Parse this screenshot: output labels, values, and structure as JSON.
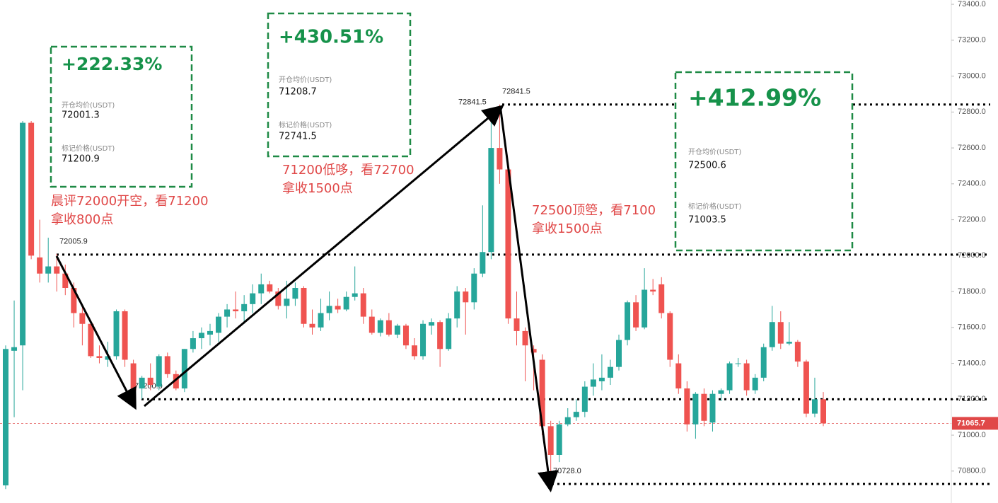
{
  "chart_data": {
    "type": "candlestick",
    "up_color": "#26a69a",
    "down_color": "#ef5350",
    "open": [
      70720,
      71470,
      71500,
      72740,
      71990,
      71900,
      71940,
      71900,
      71820,
      71680,
      71620,
      71440,
      71420,
      71440,
      71690,
      71400,
      71260,
      71320,
      71270,
      71440,
      71340,
      71260,
      71480,
      71540,
      71560,
      71570,
      71660,
      71700,
      71690,
      71730,
      71790,
      71840,
      71800,
      71720,
      71760,
      71820,
      71620,
      71600,
      71680,
      71720,
      71700,
      71770,
      71790,
      71660,
      71570,
      71640,
      71560,
      71610,
      71500,
      71440,
      71610,
      71630,
      71480,
      71650,
      71800,
      71740,
      71900,
      72020,
      72600,
      72480,
      71650,
      71580,
      71480,
      71420,
      71050,
      70890,
      71060,
      71100,
      71130,
      71270,
      71300,
      71320,
      71380,
      71530,
      71740,
      71600,
      71810,
      71840,
      71680,
      71400,
      71260,
      71060,
      71230,
      71070,
      71230,
      71250,
      71400,
      71400,
      71250,
      71320,
      71490,
      71630,
      71510,
      71520,
      71410,
      71120,
      71200
    ],
    "high": [
      71500,
      71750,
      72750,
      72750,
      72200,
      72100,
      72010,
      71950,
      71850,
      71720,
      71640,
      71500,
      71520,
      71700,
      71700,
      71420,
      71330,
      71400,
      71450,
      71460,
      71360,
      71480,
      71580,
      71600,
      71620,
      71680,
      71730,
      71800,
      71780,
      71840,
      71900,
      71860,
      71820,
      71860,
      71850,
      71830,
      71700,
      71760,
      71800,
      71760,
      71800,
      71940,
      71820,
      71700,
      71650,
      71680,
      71620,
      71620,
      71540,
      71640,
      71650,
      71640,
      71680,
      71830,
      71820,
      71930,
      72280,
      72790,
      72841.5,
      72500,
      71800,
      71600,
      71500,
      71450,
      71080,
      71080,
      71150,
      71200,
      71300,
      71400,
      71450,
      71420,
      71560,
      71750,
      71780,
      71930,
      71870,
      71880,
      71690,
      71450,
      71300,
      71240,
      71260,
      71250,
      71260,
      71410,
      71430,
      71420,
      71340,
      71510,
      71720,
      71690,
      71630,
      71530,
      71420,
      71320,
      71240
    ],
    "low": [
      70700,
      71100,
      71250,
      71980,
      71850,
      71850,
      71800,
      71780,
      71600,
      71500,
      71430,
      71400,
      71380,
      71420,
      71380,
      71220,
      71200,
      71250,
      71250,
      71320,
      71250,
      71240,
      71460,
      71480,
      71500,
      71520,
      71600,
      71650,
      71620,
      71680,
      71730,
      71790,
      71700,
      71650,
      71720,
      71600,
      71560,
      71580,
      71640,
      71680,
      71690,
      71750,
      71620,
      71560,
      71550,
      71550,
      71540,
      71480,
      71420,
      71420,
      71560,
      71380,
      71470,
      71600,
      71560,
      71700,
      71880,
      71980,
      72400,
      71620,
      71500,
      71300,
      71250,
      71000,
      70728,
      70850,
      71050,
      71080,
      71100,
      71220,
      71250,
      71280,
      71360,
      71500,
      71580,
      71590,
      71780,
      71650,
      71380,
      71230,
      71020,
      70980,
      71050,
      71020,
      71190,
      71230,
      71380,
      71220,
      71230,
      71300,
      71470,
      71480,
      71500,
      71380,
      71100,
      71100,
      71050
    ],
    "close": [
      71480,
      71490,
      72740,
      72000,
      71900,
      71940,
      71900,
      71820,
      71680,
      71620,
      71440,
      71430,
      71440,
      71690,
      71420,
      71250,
      71320,
      71280,
      71440,
      71340,
      71260,
      71480,
      71540,
      71570,
      71580,
      71660,
      71700,
      71690,
      71730,
      71790,
      71840,
      71800,
      71720,
      71760,
      71820,
      71620,
      71600,
      71680,
      71720,
      71700,
      71770,
      71790,
      71660,
      71570,
      71640,
      71560,
      71610,
      71500,
      71440,
      71620,
      71630,
      71480,
      71650,
      71800,
      71740,
      71900,
      72020,
      72600,
      72480,
      71650,
      71580,
      71500,
      71460,
      71050,
      70890,
      71060,
      71100,
      71130,
      71270,
      71310,
      71320,
      71380,
      71530,
      71740,
      71600,
      71810,
      71800,
      71680,
      71420,
      71260,
      71060,
      71230,
      71080,
      71230,
      71250,
      71400,
      71400,
      71250,
      71320,
      71490,
      71630,
      71510,
      71520,
      71410,
      71120,
      71200,
      71065.7
    ],
    "ylim": [
      70622,
      73424
    ],
    "yticks": [
      {
        "value": 73400,
        "label": "73400.0"
      },
      {
        "value": 73200,
        "label": "73200.0"
      },
      {
        "value": 73000,
        "label": "73000.0"
      },
      {
        "value": 72800,
        "label": "72800.0"
      },
      {
        "value": 72600,
        "label": "72600.0"
      },
      {
        "value": 72400,
        "label": "72400.0"
      },
      {
        "value": 72200,
        "label": "72200.0"
      },
      {
        "value": 72000,
        "label": "72000.0"
      },
      {
        "value": 71800,
        "label": "71800.0"
      },
      {
        "value": 71600,
        "label": "71600.0"
      },
      {
        "value": 71400,
        "label": "71400.0"
      },
      {
        "value": 71200,
        "label": "71200.0"
      },
      {
        "value": 71000,
        "label": "71000.0"
      },
      {
        "value": 70800,
        "label": "70800.0"
      }
    ],
    "last_price": 71065.7,
    "levels": [
      72005.9,
      {
        "value": 71200,
        "label": "71200.0"
      },
      72841.5,
      {
        "value": 70728,
        "label": "70728.0"
      }
    ],
    "annotations": [
      {
        "pnl": "+222.33%",
        "entry_label": "开仓均价(USDT)",
        "entry": "72001.3",
        "mark_label": "标记价格(USDT)",
        "mark": "71200.9",
        "note": [
          "晨评72000开空，看71200",
          "拿收800点"
        ]
      },
      {
        "pnl": "+430.51%",
        "entry_label": "开仓均价(USDT)",
        "entry": "71208.7",
        "mark_label": "标记价格(USDT)",
        "mark": "72741.5",
        "note": [
          "71200低哆，看72700",
          "拿收1500点"
        ]
      },
      {
        "pnl": "+412.99%",
        "entry_label": "开仓均价(USDT)",
        "entry": "72500.6",
        "mark_label": "标记价格(USDT)",
        "mark": "71003.5",
        "note": [
          "72500顶箜，看7100",
          "拿收1500点"
        ]
      }
    ]
  }
}
